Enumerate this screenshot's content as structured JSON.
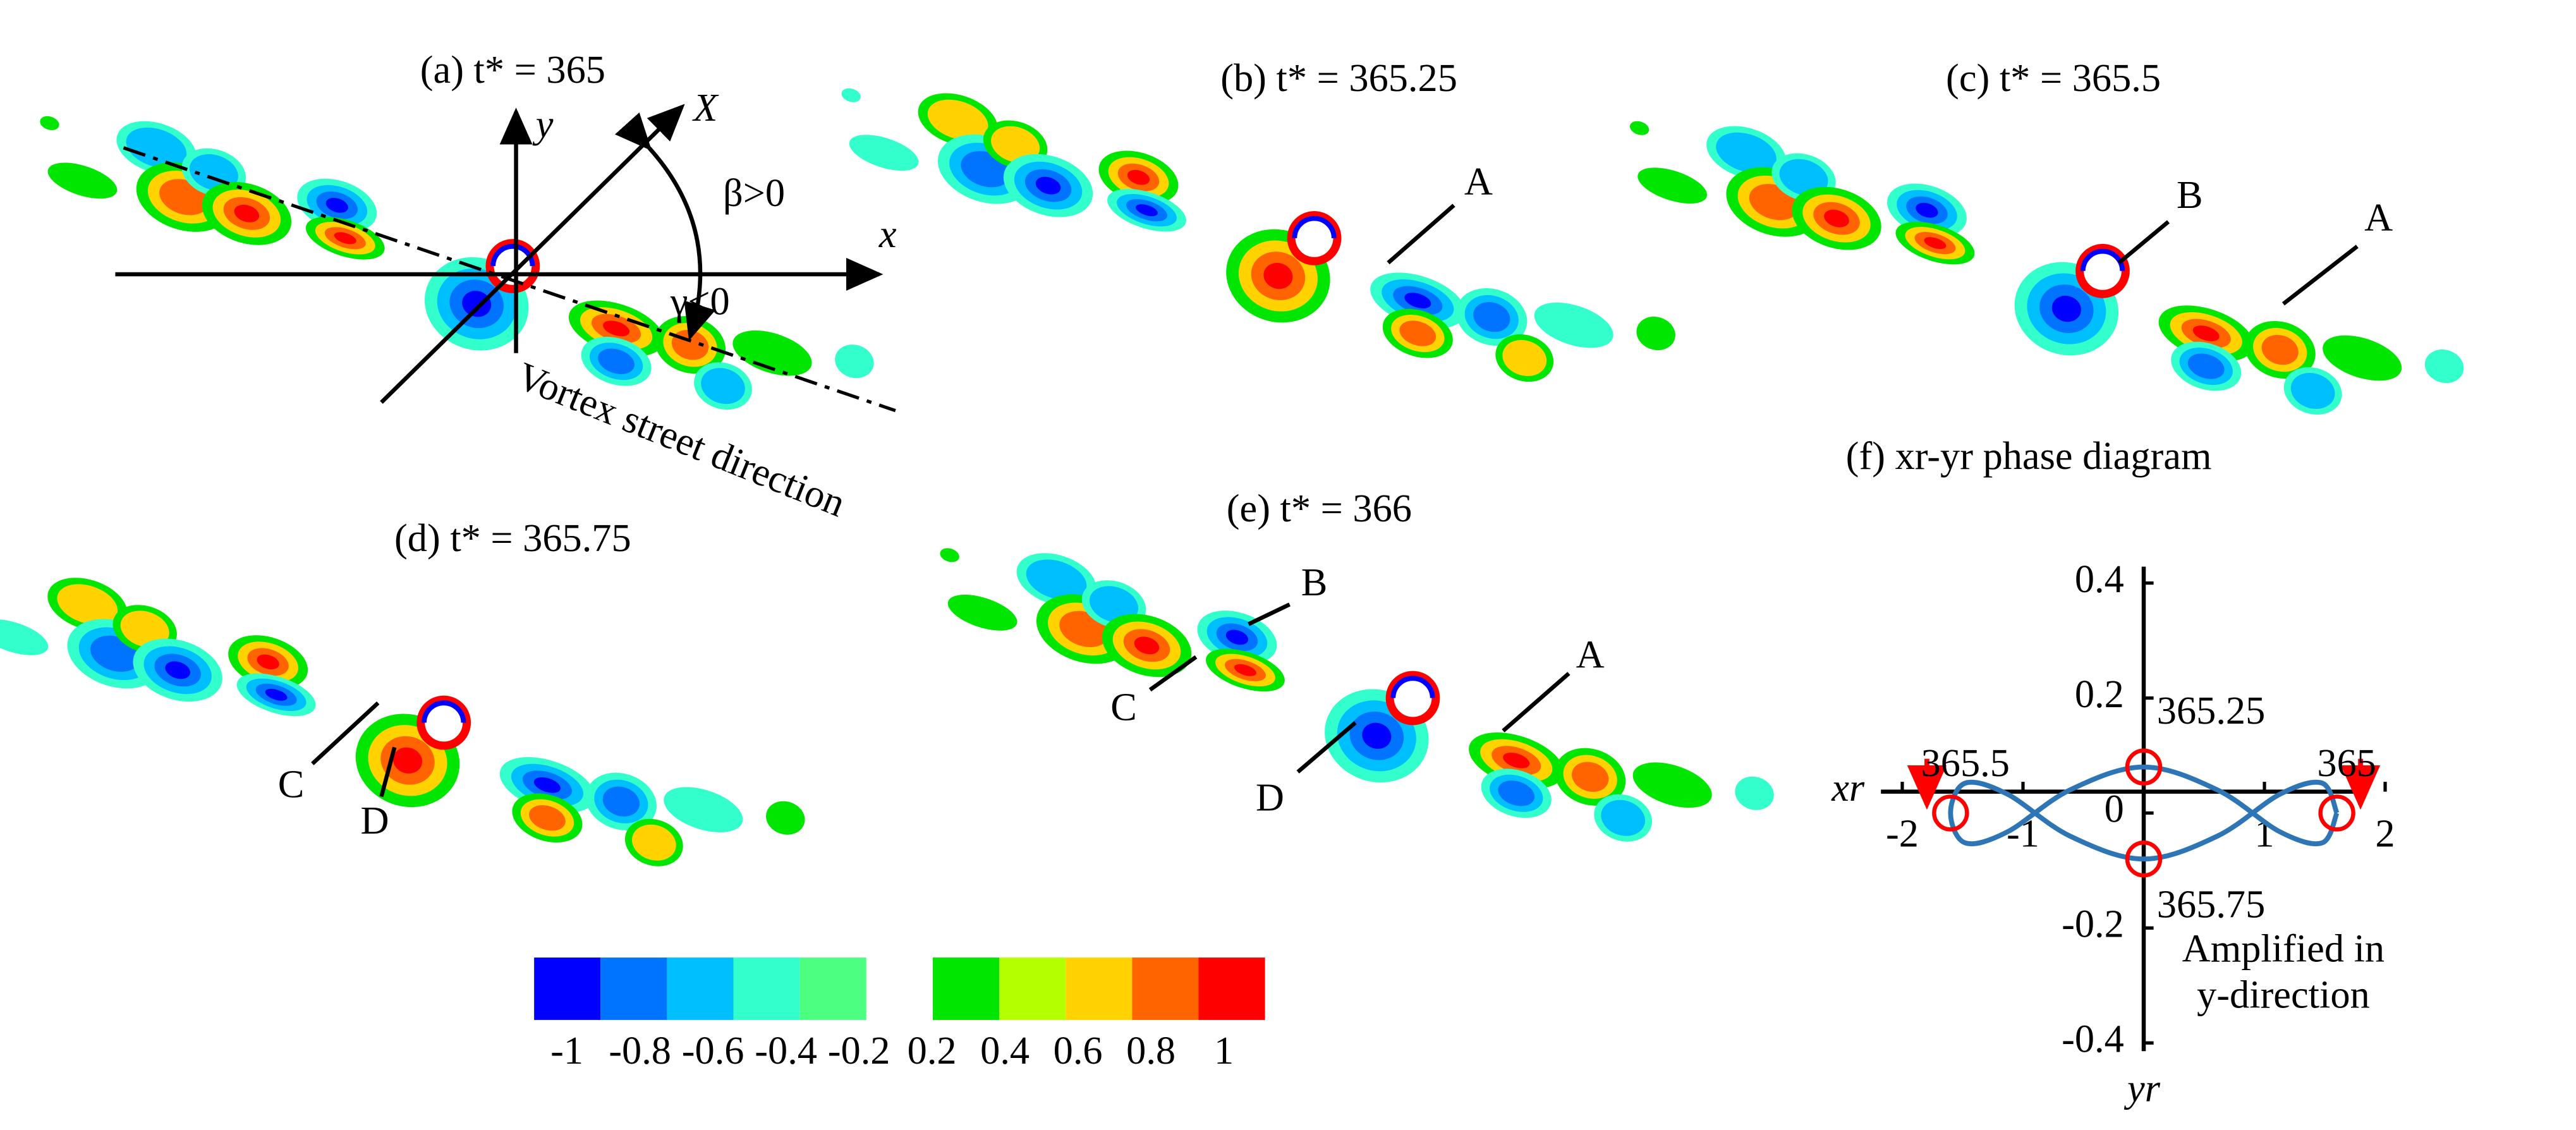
{
  "panels": [
    {
      "title": "(a) t* = 365"
    },
    {
      "title": "(b) t* = 365.25",
      "letters": [
        "A"
      ]
    },
    {
      "title": "(c) t* = 365.5",
      "letters": [
        "B",
        "A"
      ]
    },
    {
      "title": "(d) t* = 365.75",
      "letters": [
        "C",
        "D"
      ]
    },
    {
      "title": "(e) t* = 366",
      "letters": [
        "B",
        "C",
        "A",
        "D"
      ]
    }
  ],
  "annotations": {
    "y_axis": "y",
    "x_axis": "x",
    "X_axis": "X",
    "beta": "β>0",
    "gamma": "γ<0",
    "street": "Vortex street direction"
  },
  "colorbar": {
    "colors": [
      "#0000ff",
      "#0073ff",
      "#00bfff",
      "#33ffcc",
      "#4dff80",
      "#ffffff",
      "#00e600",
      "#b4ff00",
      "#ffd200",
      "#ff6400",
      "#ff0000"
    ],
    "labels": [
      -1,
      -0.8,
      -0.6,
      -0.4,
      -0.2,
      0.2,
      0.4,
      0.6,
      0.8,
      1
    ]
  },
  "chart_data": {
    "type": "line",
    "title": "(f) xr-yr phase diagram",
    "x_label": "xr",
    "y_label": "yr",
    "xlim": [
      -2,
      2
    ],
    "ylim": [
      -0.4,
      0.4
    ],
    "xticks": [
      -2,
      -1,
      1,
      2
    ],
    "yticks": [
      -0.4,
      -0.2,
      0,
      0.2,
      0.4
    ],
    "series": [
      {
        "color": "#2e75b6",
        "x": [
          1.6,
          1.478,
          1.131,
          0.612,
          0,
          -0.612,
          -1.131,
          -1.478,
          -1.6,
          -1.478,
          -1.131,
          -0.612,
          0,
          0.612,
          1.131,
          1.478,
          1.6
        ],
        "y": [
          0,
          -0.052,
          -0.033,
          0.04,
          0.08,
          0.04,
          -0.033,
          -0.052,
          0,
          0.052,
          0.033,
          -0.04,
          -0.08,
          -0.04,
          0.033,
          0.052,
          0
        ]
      }
    ],
    "markers": [
      {
        "label": "365",
        "x": 1.6,
        "y": 0
      },
      {
        "label": "365.25",
        "x": 0,
        "y": 0.08
      },
      {
        "label": "365.5",
        "x": -1.6,
        "y": 0
      },
      {
        "label": "365.75",
        "x": 0,
        "y": -0.08
      }
    ],
    "marker_color": "#ff0000",
    "note": [
      "Amplified in",
      "y-direction"
    ]
  }
}
